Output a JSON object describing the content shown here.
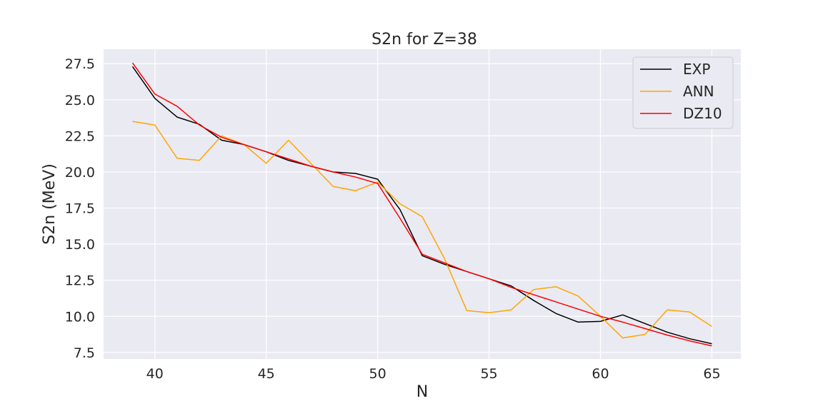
{
  "chart_data": {
    "type": "line",
    "title": "S2n for Z=38",
    "xlabel": "N",
    "ylabel": "S2n (MeV)",
    "xlim": [
      37.7,
      66.3
    ],
    "ylim": [
      7.05,
      28.5
    ],
    "xticks": [
      40,
      45,
      50,
      55,
      60,
      65
    ],
    "yticks": [
      7.5,
      10.0,
      12.5,
      15.0,
      17.5,
      20.0,
      22.5,
      25.0,
      27.5
    ],
    "grid": true,
    "legend": "top-right",
    "x": [
      39,
      40,
      41,
      42,
      43,
      44,
      45,
      46,
      47,
      48,
      49,
      50,
      51,
      52,
      53,
      54,
      55,
      56,
      57,
      58,
      59,
      60,
      61,
      62,
      63,
      64,
      65
    ],
    "series": [
      {
        "name": "EXP",
        "color": "#000000",
        "values": [
          27.3,
          25.1,
          23.8,
          23.3,
          22.2,
          21.9,
          21.4,
          20.8,
          20.4,
          20.0,
          19.9,
          19.5,
          17.4,
          14.2,
          13.6,
          13.1,
          12.6,
          12.1,
          11.1,
          10.2,
          9.6,
          9.65,
          10.1,
          9.5,
          8.9,
          8.45,
          8.1
        ]
      },
      {
        "name": "ANN",
        "color": "#ffa500",
        "values": [
          23.5,
          23.25,
          20.95,
          20.8,
          22.5,
          21.9,
          20.6,
          22.2,
          20.6,
          19.0,
          18.7,
          19.3,
          17.8,
          16.9,
          14.0,
          10.4,
          10.25,
          10.45,
          11.85,
          12.05,
          11.4,
          10.0,
          8.5,
          8.75,
          10.45,
          10.3,
          9.3
        ]
      },
      {
        "name": "DZ10",
        "color": "#ff0000",
        "values": [
          27.55,
          25.4,
          24.55,
          23.25,
          22.4,
          21.9,
          21.4,
          20.9,
          20.4,
          20.0,
          19.65,
          19.2,
          16.8,
          14.3,
          13.7,
          13.1,
          12.6,
          12.0,
          11.5,
          11.0,
          10.5,
          10.0,
          9.6,
          9.15,
          8.7,
          8.3,
          7.95
        ]
      }
    ]
  }
}
